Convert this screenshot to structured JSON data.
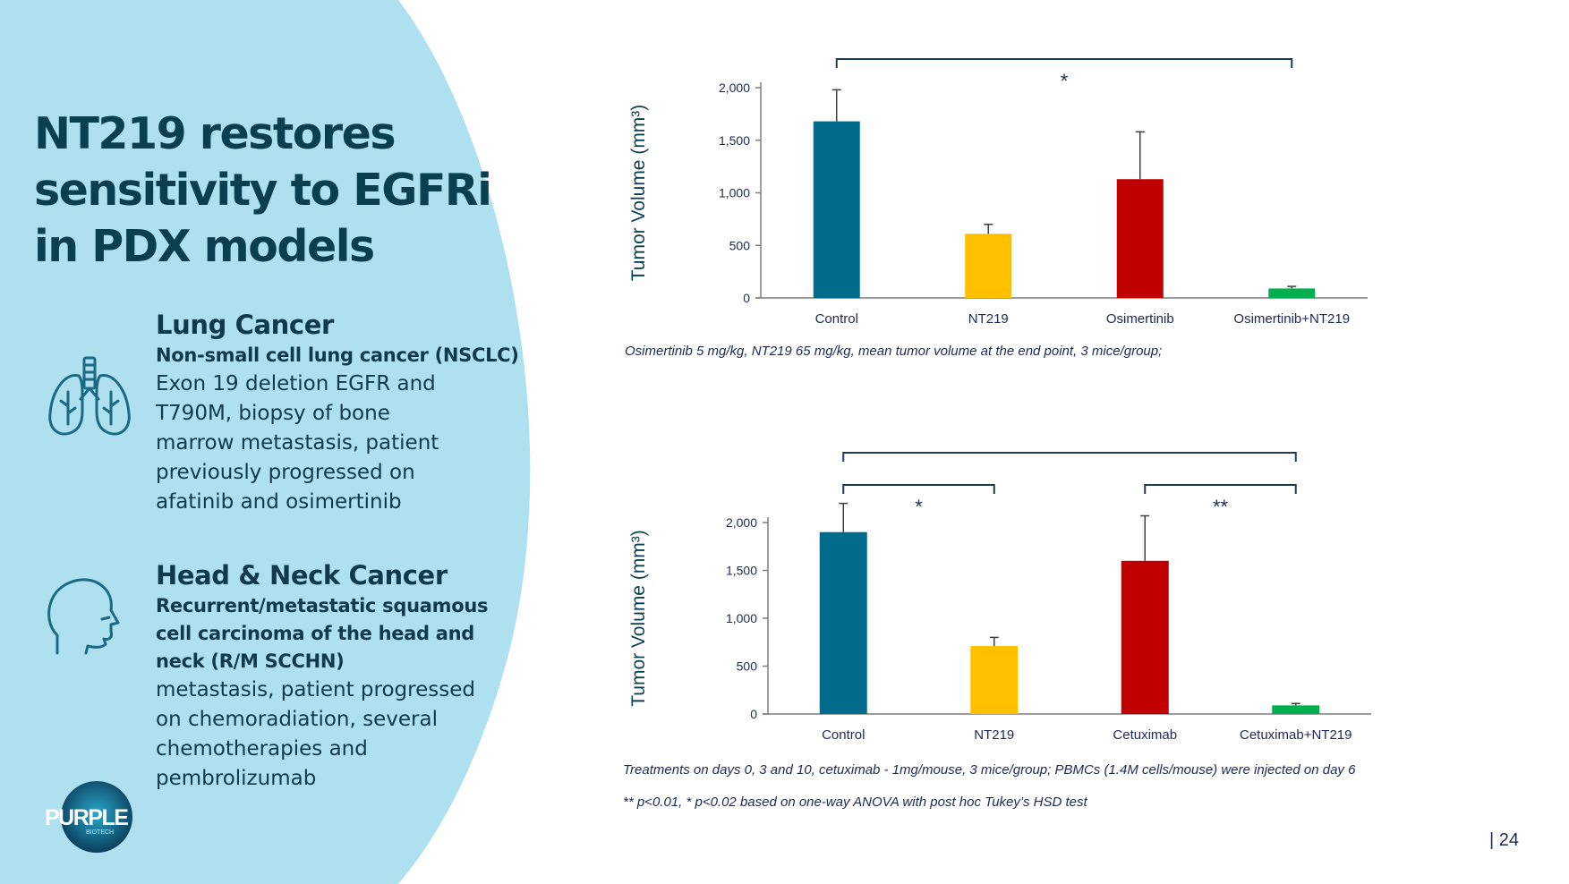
{
  "slide": {
    "title_lines": [
      "NT219 restores",
      "sensitivity to EGFRi",
      "in PDX models"
    ],
    "page_number": "| 24",
    "logo": {
      "text": "PURPLE",
      "subtext": "BIOTECH"
    },
    "colors": {
      "panel": "#aee0f0",
      "title": "#0a3f50",
      "icon": "#1a6a85"
    },
    "sections": [
      {
        "icon": "lungs-icon",
        "title": "Lung Cancer",
        "subtitle_lines": [
          "Non-small cell lung cancer (NSCLC)"
        ],
        "body_lines": [
          "Exon 19 deletion EGFR and",
          "T790M, biopsy of bone",
          "marrow metastasis, patient",
          "previously progressed on",
          "afatinib and osimertinib"
        ]
      },
      {
        "icon": "head-profile-icon",
        "title": "Head & Neck Cancer",
        "subtitle_lines": [
          "Recurrent/metastatic squamous",
          "cell carcinoma of the head and",
          "neck (R/M SCCHN)"
        ],
        "body_lines": [
          "metastasis, patient progressed",
          "on chemoradiation, several",
          "chemotherapies and",
          "pembrolizumab"
        ]
      }
    ],
    "captions": {
      "chart1": "Osimertinib 5 mg/kg, NT219 65 mg/kg, mean tumor volume at the end point, 3 mice/group;",
      "chart2_line1": "Treatments on days 0, 3 and 10, cetuximab - 1mg/mouse, 3 mice/group; PBMCs (1.4M cells/mouse) were injected on day 6",
      "chart2_line2": "** p<0.01, * p<0.02 based on one-way ANOVA with post hoc Tukey’s HSD test"
    }
  },
  "chart_data": [
    {
      "type": "bar",
      "categories": [
        "Control",
        "NT219",
        "Osimertinib",
        "Osimertinib+NT219"
      ],
      "values": [
        1680,
        610,
        1130,
        90
      ],
      "error_plus": [
        300,
        90,
        450,
        20
      ],
      "colors": [
        "#006b8a",
        "#ffc000",
        "#c00000",
        "#00b050"
      ],
      "ylabel": "Tumor Volume (mm³)",
      "ylim": [
        0,
        2000
      ],
      "yticks": [
        0,
        500,
        1000,
        1500,
        2000
      ],
      "ytick_labels": [
        "0",
        "500",
        "1,000",
        "1,500",
        "2,000"
      ],
      "significance": [
        {
          "from": 0,
          "to": 3,
          "label": "*",
          "level": 1
        }
      ]
    },
    {
      "type": "bar",
      "categories": [
        "Control",
        "NT219",
        "Cetuximab",
        "Cetuximab+NT219"
      ],
      "values": [
        1900,
        710,
        1600,
        90
      ],
      "error_plus": [
        300,
        90,
        470,
        20
      ],
      "colors": [
        "#006b8a",
        "#ffc000",
        "#c00000",
        "#00b050"
      ],
      "ylabel": "Tumor Volume (mm³)",
      "ylim": [
        0,
        2000
      ],
      "yticks": [
        0,
        500,
        1000,
        1500,
        2000
      ],
      "ytick_labels": [
        "0",
        "500",
        "1,000",
        "1,500",
        "2,000"
      ],
      "significance": [
        {
          "from": 0,
          "to": 3,
          "label": "",
          "level": 2
        },
        {
          "from": 0,
          "to": 1,
          "label": "*",
          "level": 1
        },
        {
          "from": 2,
          "to": 3,
          "label": "**",
          "level": 1
        }
      ]
    }
  ]
}
